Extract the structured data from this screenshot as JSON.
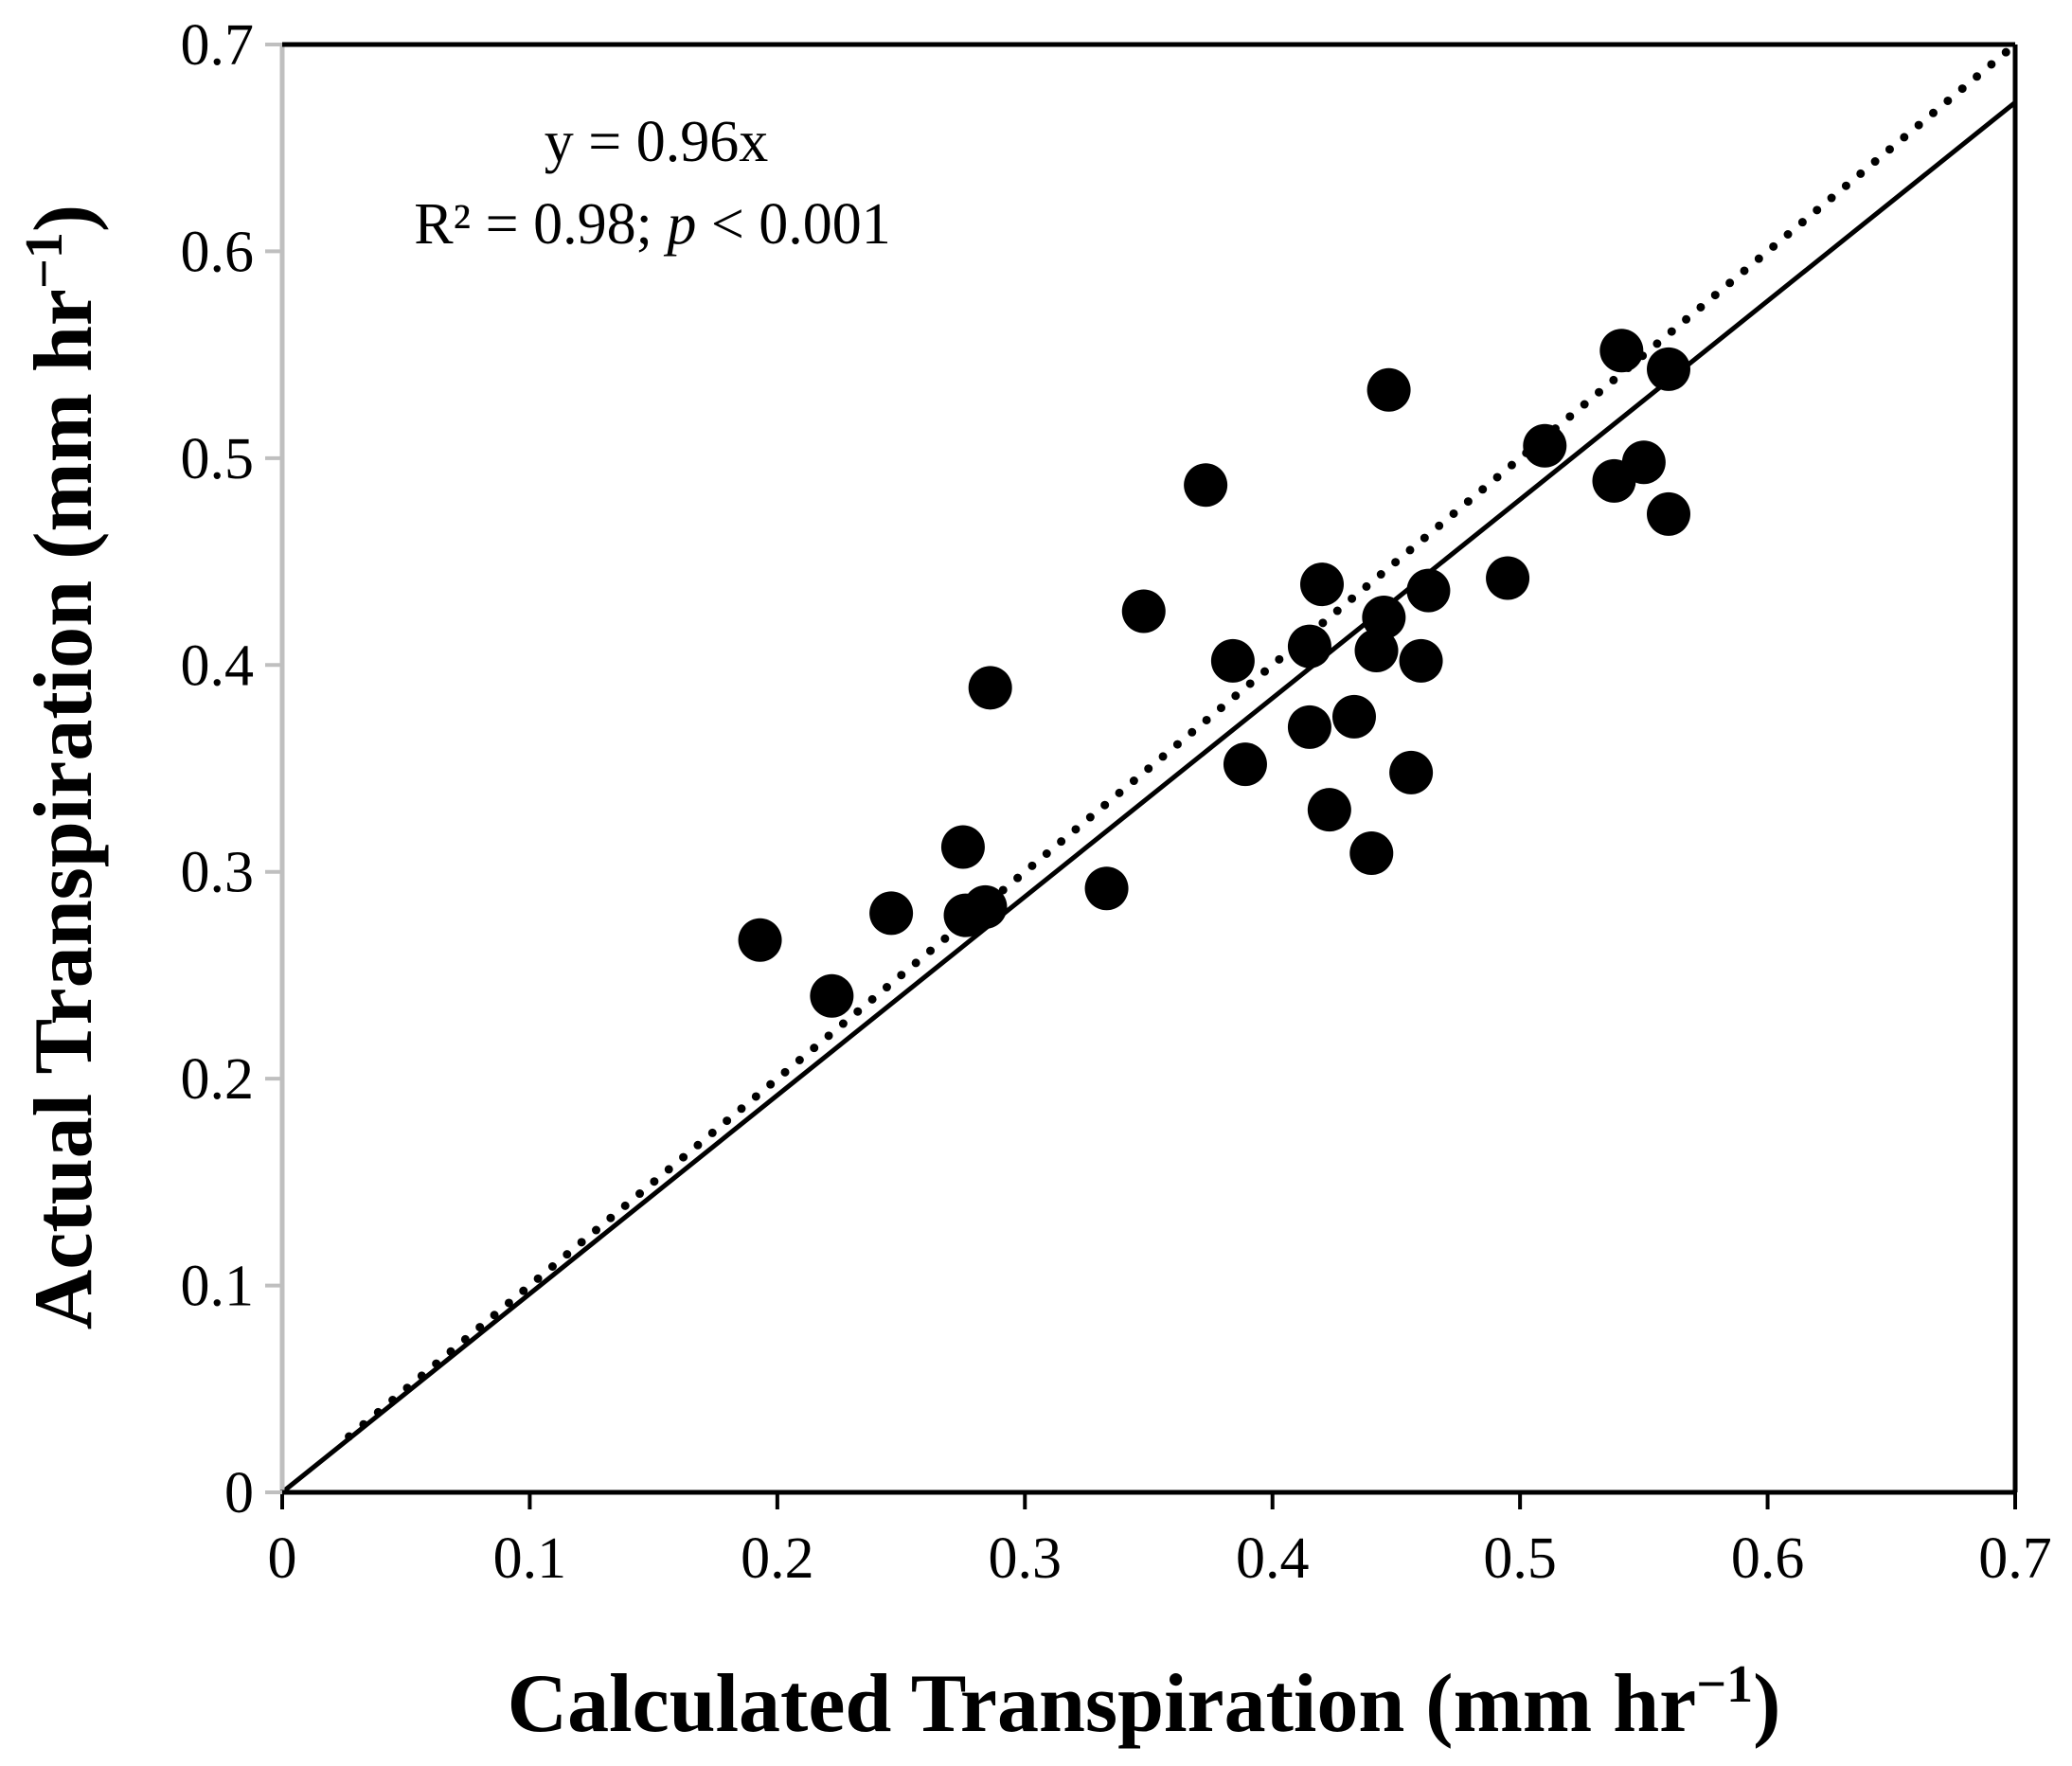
{
  "chart_data": {
    "type": "scatter",
    "title": "",
    "xlabel": "Calculated Transpiration (mm hr",
    "ylabel": "Actual Transpiration (mm hr",
    "label_superscript": "−1",
    "label_close": ")",
    "xlim": [
      0,
      0.7
    ],
    "ylim": [
      0,
      0.7
    ],
    "xticks": [
      "0",
      "0.1",
      "0.2",
      "0.3",
      "0.4",
      "0.5",
      "0.6",
      "0.7"
    ],
    "yticks": [
      "0",
      "0.1",
      "0.2",
      "0.3",
      "0.4",
      "0.5",
      "0.6",
      "0.7"
    ],
    "grid": false,
    "annotation": {
      "line1": "y = 0.96x",
      "line2_prefix": "R² = 0.98; ",
      "line2_italic": "p",
      "line2_suffix": " < 0.001"
    },
    "fit_line": {
      "name": "regression",
      "style": "solid",
      "slope": 0.96,
      "x_range": [
        0,
        0.7
      ]
    },
    "reference_line": {
      "name": "1:1",
      "style": "dotted",
      "slope": 1.0,
      "x_range": [
        0.027,
        0.7
      ]
    },
    "points": [
      {
        "x": 0.193,
        "y": 0.267
      },
      {
        "x": 0.222,
        "y": 0.24
      },
      {
        "x": 0.246,
        "y": 0.28
      },
      {
        "x": 0.275,
        "y": 0.312
      },
      {
        "x": 0.276,
        "y": 0.279
      },
      {
        "x": 0.284,
        "y": 0.283
      },
      {
        "x": 0.286,
        "y": 0.389
      },
      {
        "x": 0.333,
        "y": 0.292
      },
      {
        "x": 0.348,
        "y": 0.426
      },
      {
        "x": 0.373,
        "y": 0.487
      },
      {
        "x": 0.384,
        "y": 0.402
      },
      {
        "x": 0.389,
        "y": 0.352
      },
      {
        "x": 0.415,
        "y": 0.409
      },
      {
        "x": 0.415,
        "y": 0.37
      },
      {
        "x": 0.42,
        "y": 0.439
      },
      {
        "x": 0.423,
        "y": 0.33
      },
      {
        "x": 0.433,
        "y": 0.375
      },
      {
        "x": 0.44,
        "y": 0.309
      },
      {
        "x": 0.442,
        "y": 0.407
      },
      {
        "x": 0.445,
        "y": 0.423
      },
      {
        "x": 0.447,
        "y": 0.533
      },
      {
        "x": 0.456,
        "y": 0.348
      },
      {
        "x": 0.46,
        "y": 0.402
      },
      {
        "x": 0.463,
        "y": 0.436
      },
      {
        "x": 0.495,
        "y": 0.442
      },
      {
        "x": 0.51,
        "y": 0.506
      },
      {
        "x": 0.538,
        "y": 0.489
      },
      {
        "x": 0.541,
        "y": 0.552
      },
      {
        "x": 0.55,
        "y": 0.498
      },
      {
        "x": 0.56,
        "y": 0.473
      },
      {
        "x": 0.56,
        "y": 0.543
      }
    ]
  },
  "colors": {
    "marker": "#000000",
    "line": "#000000",
    "left_axis": "#bfbfbf",
    "frame": "#000000"
  }
}
